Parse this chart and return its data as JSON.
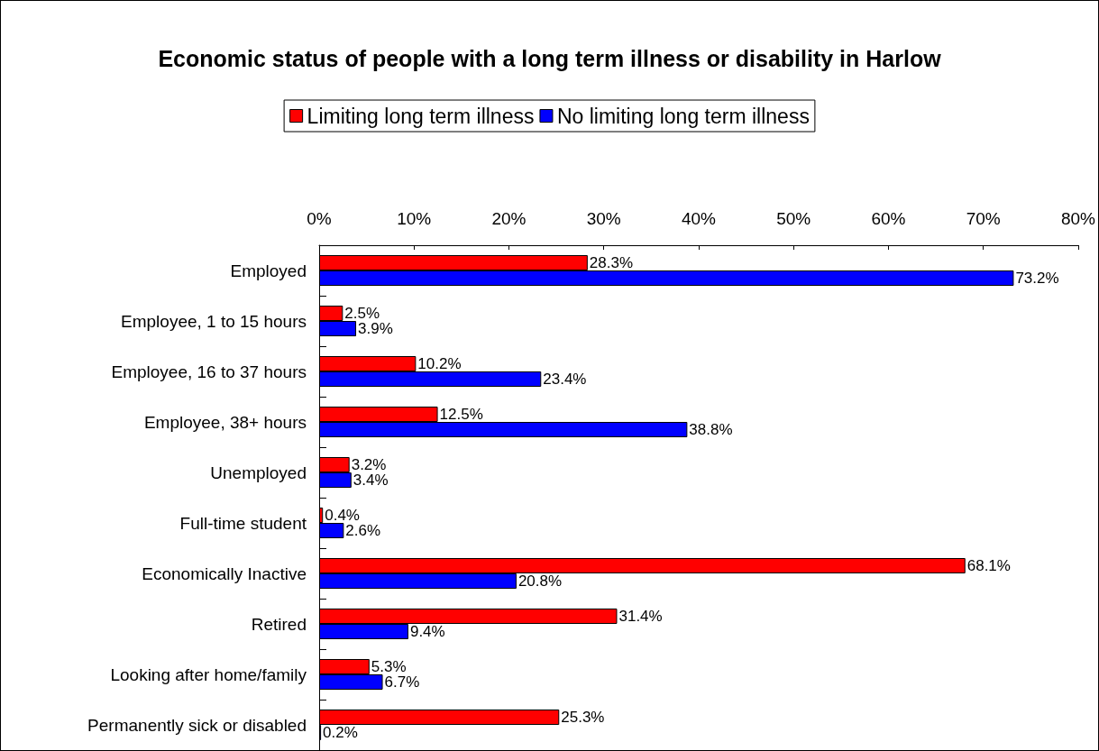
{
  "chart_data": {
    "type": "bar",
    "orientation": "horizontal",
    "title": "Economic status of people with a long term illness or disability in Harlow",
    "categories": [
      "Employed",
      "Employee, 1 to 15 hours",
      "Employee, 16 to 37 hours",
      "Employee, 38+ hours",
      "Unemployed",
      "Full-time student",
      "Economically Inactive",
      "Retired",
      "Looking after home/family",
      "Permanently sick or disabled"
    ],
    "series": [
      {
        "name": "Limiting long term illness",
        "color": "#ff0000",
        "values": [
          28.3,
          2.5,
          10.2,
          12.5,
          3.2,
          0.4,
          68.1,
          31.4,
          5.3,
          25.3
        ],
        "value_labels": [
          "28.3%",
          "2.5%",
          "10.2%",
          "12.5%",
          "3.2%",
          "0.4%",
          "68.1%",
          "31.4%",
          "5.3%",
          "25.3%"
        ]
      },
      {
        "name": "No limiting long term illness",
        "color": "#0000ff",
        "values": [
          73.2,
          3.9,
          23.4,
          38.8,
          3.4,
          2.6,
          20.8,
          9.4,
          6.7,
          0.2
        ],
        "value_labels": [
          "73.2%",
          "3.9%",
          "23.4%",
          "38.8%",
          "3.4%",
          "2.6%",
          "20.8%",
          "9.4%",
          "6.7%",
          "0.2%"
        ]
      }
    ],
    "xlim": [
      0,
      80
    ],
    "xticks": [
      {
        "value": 0,
        "label": "0%"
      },
      {
        "value": 10,
        "label": "10%"
      },
      {
        "value": 20,
        "label": "20%"
      },
      {
        "value": 30,
        "label": "30%"
      },
      {
        "value": 40,
        "label": "40%"
      },
      {
        "value": 50,
        "label": "50%"
      },
      {
        "value": 60,
        "label": "60%"
      },
      {
        "value": 70,
        "label": "70%"
      },
      {
        "value": 80,
        "label": "80%"
      }
    ],
    "legend": "top",
    "grid": false
  }
}
